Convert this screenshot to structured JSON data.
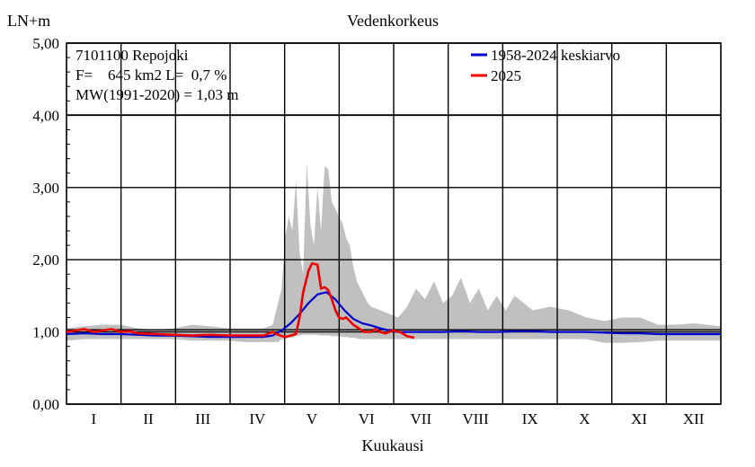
{
  "chart_data": {
    "type": "line",
    "title": "Vedenkorkeus",
    "ylabel": "LN+m",
    "xlabel": "Kuukausi",
    "ylim": [
      0,
      5
    ],
    "yticks": [
      "0,00",
      "1,00",
      "2,00",
      "3,00",
      "4,00",
      "5,00"
    ],
    "categories": [
      "I",
      "II",
      "III",
      "IV",
      "V",
      "VI",
      "VII",
      "VIII",
      "IX",
      "X",
      "XI",
      "XII"
    ],
    "grid": true,
    "legend_position": "top-right",
    "info": [
      "7101100 Repojoki",
      "F=    645 km2 L=  0,7 %",
      "MW(1991-2020) = 1,03 m"
    ],
    "reference_level": 1.03,
    "colors": {
      "mean": "#0000cc",
      "current": "#ee0000",
      "range": "#c0c0c0",
      "reference": "#000000"
    },
    "range_band": {
      "x": [
        0,
        10,
        20,
        30,
        40,
        50,
        60,
        70,
        80,
        90,
        100,
        110,
        115,
        118,
        120,
        122,
        124,
        126,
        128,
        130,
        132,
        134,
        136,
        138,
        140,
        142,
        144,
        146,
        148,
        150,
        152,
        154,
        156,
        158,
        160,
        162,
        164,
        166,
        168,
        170,
        175,
        180,
        185,
        190,
        195,
        200,
        205,
        210,
        215,
        220,
        225,
        230,
        235,
        240,
        245,
        250,
        255,
        260,
        270,
        280,
        290,
        300,
        310,
        320,
        330,
        340,
        350,
        365
      ],
      "min": [
        0.88,
        0.9,
        0.9,
        0.9,
        0.9,
        0.9,
        0.9,
        0.88,
        0.88,
        0.88,
        0.86,
        0.86,
        0.86,
        0.86,
        0.9,
        0.9,
        0.92,
        0.92,
        0.95,
        0.95,
        0.96,
        0.96,
        0.96,
        0.96,
        0.96,
        0.95,
        0.95,
        0.95,
        0.94,
        0.94,
        0.94,
        0.93,
        0.93,
        0.92,
        0.92,
        0.91,
        0.9,
        0.9,
        0.9,
        0.9,
        0.9,
        0.9,
        0.9,
        0.9,
        0.9,
        0.9,
        0.9,
        0.9,
        0.9,
        0.9,
        0.9,
        0.9,
        0.9,
        0.9,
        0.9,
        0.9,
        0.9,
        0.9,
        0.9,
        0.9,
        0.9,
        0.85,
        0.85,
        0.86,
        0.88,
        0.88,
        0.88,
        0.88
      ],
      "max": [
        1.05,
        1.08,
        1.1,
        1.1,
        1.05,
        1.03,
        1.05,
        1.1,
        1.08,
        1.05,
        1.05,
        1.05,
        1.1,
        1.4,
        1.6,
        2.3,
        2.6,
        2.4,
        3.1,
        2.1,
        1.8,
        3.35,
        2.5,
        2.2,
        3.0,
        2.4,
        3.3,
        3.25,
        2.8,
        2.7,
        2.6,
        2.5,
        2.3,
        2.2,
        1.9,
        1.7,
        1.6,
        1.5,
        1.4,
        1.35,
        1.3,
        1.25,
        1.2,
        1.35,
        1.6,
        1.45,
        1.7,
        1.4,
        1.5,
        1.75,
        1.4,
        1.6,
        1.3,
        1.5,
        1.3,
        1.5,
        1.4,
        1.3,
        1.35,
        1.3,
        1.2,
        1.15,
        1.2,
        1.2,
        1.1,
        1.1,
        1.12,
        1.08
      ]
    },
    "series": [
      {
        "name": "1958-2024 keskiarvo",
        "x": [
          0,
          10,
          20,
          30,
          40,
          50,
          60,
          70,
          80,
          90,
          100,
          110,
          115,
          120,
          125,
          130,
          135,
          140,
          145,
          150,
          155,
          160,
          165,
          170,
          175,
          180,
          185,
          190,
          200,
          210,
          220,
          230,
          240,
          250,
          260,
          270,
          280,
          290,
          300,
          310,
          320,
          330,
          340,
          350,
          365
        ],
        "values": [
          0.97,
          0.98,
          0.97,
          0.97,
          0.96,
          0.95,
          0.95,
          0.94,
          0.93,
          0.93,
          0.93,
          0.93,
          0.95,
          1.02,
          1.12,
          1.25,
          1.4,
          1.52,
          1.55,
          1.45,
          1.3,
          1.18,
          1.12,
          1.09,
          1.05,
          1.02,
          1.0,
          1.0,
          1.0,
          1.0,
          1.01,
          1.0,
          1.0,
          1.01,
          1.01,
          1.0,
          1.0,
          1.0,
          0.99,
          0.98,
          0.98,
          0.97,
          0.97,
          0.97,
          0.97
        ]
      },
      {
        "name": "2025",
        "x": [
          0,
          5,
          10,
          15,
          20,
          25,
          30,
          35,
          40,
          50,
          60,
          70,
          80,
          90,
          100,
          110,
          115,
          118,
          122,
          125,
          128,
          130,
          132,
          135,
          137,
          140,
          142,
          144,
          146,
          148,
          150,
          152,
          154,
          156,
          158,
          160,
          163,
          166,
          170,
          172,
          175,
          178,
          182,
          186,
          190,
          194
        ],
        "values": [
          1.0,
          1.02,
          1.04,
          1.0,
          1.02,
          1.04,
          1.0,
          1.01,
          0.98,
          0.97,
          0.96,
          0.95,
          0.96,
          0.95,
          0.95,
          0.95,
          1.0,
          0.96,
          0.93,
          0.95,
          0.97,
          1.2,
          1.55,
          1.85,
          1.95,
          1.93,
          1.6,
          1.62,
          1.58,
          1.45,
          1.3,
          1.2,
          1.18,
          1.2,
          1.15,
          1.1,
          1.05,
          1.0,
          1.0,
          1.04,
          1.0,
          0.98,
          1.02,
          1.0,
          0.94,
          0.92
        ]
      }
    ]
  }
}
